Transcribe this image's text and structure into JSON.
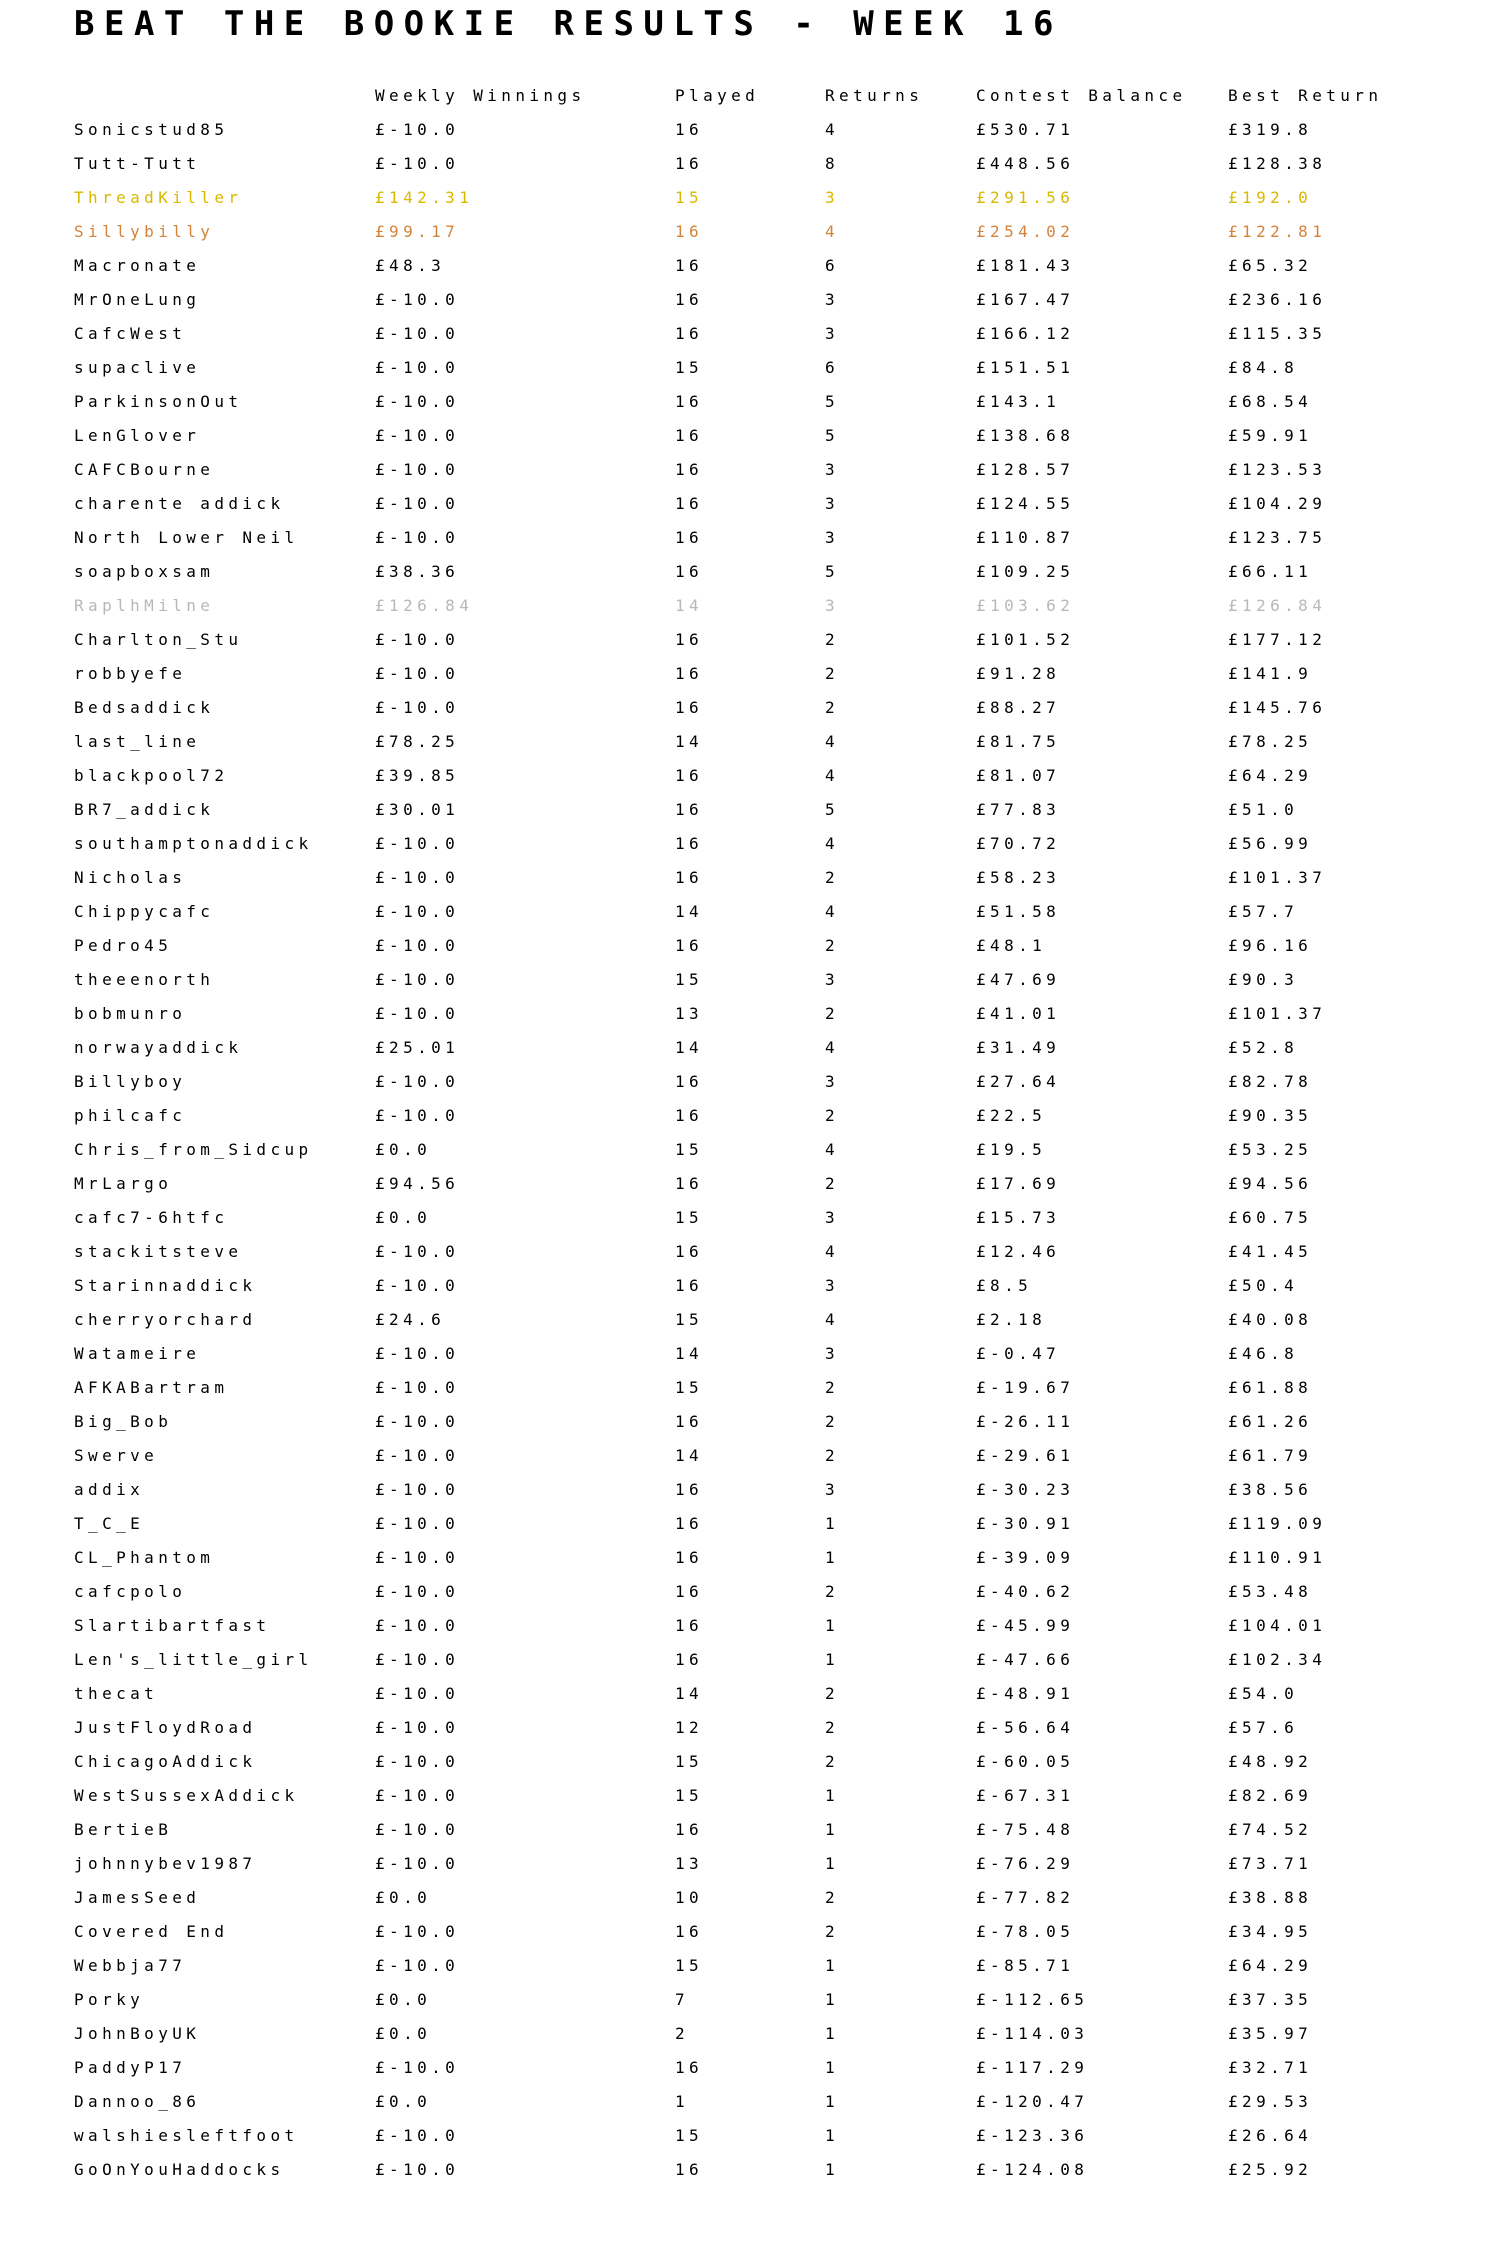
{
  "title": "BEAT THE BOOKIE RESULTS - WEEK 16",
  "colors": {
    "default": "#000000",
    "gold": "#d9b800",
    "orange": "#d4843a",
    "greyed": "#b8b8b8"
  },
  "columns": [
    "",
    "Weekly Winnings",
    "Played",
    "Returns",
    "Contest Balance",
    "Best Return"
  ],
  "rows": [
    {
      "name": "Sonicstud85",
      "weekly": "£-10.0",
      "played": "16",
      "returns": "4",
      "balance": "£530.71",
      "best": "£319.8"
    },
    {
      "name": "Tutt-Tutt",
      "weekly": "£-10.0",
      "played": "16",
      "returns": "8",
      "balance": "£448.56",
      "best": "£128.38"
    },
    {
      "name": "ThreadKiller",
      "weekly": "£142.31",
      "played": "15",
      "returns": "3",
      "balance": "£291.56",
      "best": "£192.0",
      "color": "gold"
    },
    {
      "name": "Sillybilly",
      "weekly": "£99.17",
      "played": "16",
      "returns": "4",
      "balance": "£254.02",
      "best": "£122.81",
      "color": "orange"
    },
    {
      "name": "Macronate",
      "weekly": "£48.3",
      "played": "16",
      "returns": "6",
      "balance": "£181.43",
      "best": "£65.32"
    },
    {
      "name": "MrOneLung",
      "weekly": "£-10.0",
      "played": "16",
      "returns": "3",
      "balance": "£167.47",
      "best": "£236.16"
    },
    {
      "name": "CafcWest",
      "weekly": "£-10.0",
      "played": "16",
      "returns": "3",
      "balance": "£166.12",
      "best": "£115.35"
    },
    {
      "name": "supaclive",
      "weekly": "£-10.0",
      "played": "15",
      "returns": "6",
      "balance": "£151.51",
      "best": "£84.8"
    },
    {
      "name": "ParkinsonOut",
      "weekly": "£-10.0",
      "played": "16",
      "returns": "5",
      "balance": "£143.1",
      "best": "£68.54"
    },
    {
      "name": "LenGlover",
      "weekly": "£-10.0",
      "played": "16",
      "returns": "5",
      "balance": "£138.68",
      "best": "£59.91"
    },
    {
      "name": "CAFCBourne",
      "weekly": "£-10.0",
      "played": "16",
      "returns": "3",
      "balance": "£128.57",
      "best": "£123.53"
    },
    {
      "name": "charente addick",
      "weekly": "£-10.0",
      "played": "16",
      "returns": "3",
      "balance": "£124.55",
      "best": "£104.29"
    },
    {
      "name": "North Lower Neil",
      "weekly": "£-10.0",
      "played": "16",
      "returns": "3",
      "balance": "£110.87",
      "best": "£123.75"
    },
    {
      "name": "soapboxsam",
      "weekly": "£38.36",
      "played": "16",
      "returns": "5",
      "balance": "£109.25",
      "best": "£66.11"
    },
    {
      "name": "RaplhMilne",
      "weekly": "£126.84",
      "played": "14",
      "returns": "3",
      "balance": "£103.62",
      "best": "£126.84",
      "color": "greyed"
    },
    {
      "name": "Charlton_Stu",
      "weekly": "£-10.0",
      "played": "16",
      "returns": "2",
      "balance": "£101.52",
      "best": "£177.12"
    },
    {
      "name": "robbyefe",
      "weekly": "£-10.0",
      "played": "16",
      "returns": "2",
      "balance": "£91.28",
      "best": "£141.9"
    },
    {
      "name": "Bedsaddick",
      "weekly": "£-10.0",
      "played": "16",
      "returns": "2",
      "balance": "£88.27",
      "best": "£145.76"
    },
    {
      "name": "last_line",
      "weekly": "£78.25",
      "played": "14",
      "returns": "4",
      "balance": "£81.75",
      "best": "£78.25"
    },
    {
      "name": "blackpool72",
      "weekly": "£39.85",
      "played": "16",
      "returns": "4",
      "balance": "£81.07",
      "best": "£64.29"
    },
    {
      "name": "BR7_addick",
      "weekly": "£30.01",
      "played": "16",
      "returns": "5",
      "balance": "£77.83",
      "best": "£51.0"
    },
    {
      "name": "southamptonaddick",
      "weekly": "£-10.0",
      "played": "16",
      "returns": "4",
      "balance": "£70.72",
      "best": "£56.99"
    },
    {
      "name": "Nicholas",
      "weekly": "£-10.0",
      "played": "16",
      "returns": "2",
      "balance": "£58.23",
      "best": "£101.37"
    },
    {
      "name": "Chippycafc",
      "weekly": "£-10.0",
      "played": "14",
      "returns": "4",
      "balance": "£51.58",
      "best": "£57.7"
    },
    {
      "name": "Pedro45",
      "weekly": "£-10.0",
      "played": "16",
      "returns": "2",
      "balance": "£48.1",
      "best": "£96.16"
    },
    {
      "name": "theeenorth",
      "weekly": "£-10.0",
      "played": "15",
      "returns": "3",
      "balance": "£47.69",
      "best": "£90.3"
    },
    {
      "name": "bobmunro",
      "weekly": "£-10.0",
      "played": "13",
      "returns": "2",
      "balance": "£41.01",
      "best": "£101.37"
    },
    {
      "name": "norwayaddick",
      "weekly": "£25.01",
      "played": "14",
      "returns": "4",
      "balance": "£31.49",
      "best": "£52.8"
    },
    {
      "name": "Billyboy",
      "weekly": "£-10.0",
      "played": "16",
      "returns": "3",
      "balance": "£27.64",
      "best": "£82.78"
    },
    {
      "name": "philcafc",
      "weekly": "£-10.0",
      "played": "16",
      "returns": "2",
      "balance": "£22.5",
      "best": "£90.35"
    },
    {
      "name": "Chris_from_Sidcup",
      "weekly": "£0.0",
      "played": "15",
      "returns": "4",
      "balance": "£19.5",
      "best": "£53.25"
    },
    {
      "name": "MrLargo",
      "weekly": "£94.56",
      "played": "16",
      "returns": "2",
      "balance": "£17.69",
      "best": "£94.56"
    },
    {
      "name": "cafc7-6htfc",
      "weekly": "£0.0",
      "played": "15",
      "returns": "3",
      "balance": "£15.73",
      "best": "£60.75"
    },
    {
      "name": "stackitsteve",
      "weekly": "£-10.0",
      "played": "16",
      "returns": "4",
      "balance": "£12.46",
      "best": "£41.45"
    },
    {
      "name": "Starinnaddick",
      "weekly": "£-10.0",
      "played": "16",
      "returns": "3",
      "balance": "£8.5",
      "best": "£50.4"
    },
    {
      "name": "cherryorchard",
      "weekly": "£24.6",
      "played": "15",
      "returns": "4",
      "balance": "£2.18",
      "best": "£40.08"
    },
    {
      "name": "Watameire",
      "weekly": "£-10.0",
      "played": "14",
      "returns": "3",
      "balance": "£-0.47",
      "best": "£46.8"
    },
    {
      "name": "AFKABartram",
      "weekly": "£-10.0",
      "played": "15",
      "returns": "2",
      "balance": "£-19.67",
      "best": "£61.88"
    },
    {
      "name": "Big_Bob",
      "weekly": "£-10.0",
      "played": "16",
      "returns": "2",
      "balance": "£-26.11",
      "best": "£61.26"
    },
    {
      "name": "Swerve",
      "weekly": "£-10.0",
      "played": "14",
      "returns": "2",
      "balance": "£-29.61",
      "best": "£61.79"
    },
    {
      "name": "addix",
      "weekly": "£-10.0",
      "played": "16",
      "returns": "3",
      "balance": "£-30.23",
      "best": "£38.56"
    },
    {
      "name": "T_C_E",
      "weekly": "£-10.0",
      "played": "16",
      "returns": "1",
      "balance": "£-30.91",
      "best": "£119.09"
    },
    {
      "name": "CL_Phantom",
      "weekly": "£-10.0",
      "played": "16",
      "returns": "1",
      "balance": "£-39.09",
      "best": "£110.91"
    },
    {
      "name": "cafcpolo",
      "weekly": "£-10.0",
      "played": "16",
      "returns": "2",
      "balance": "£-40.62",
      "best": "£53.48"
    },
    {
      "name": "Slartibartfast",
      "weekly": "£-10.0",
      "played": "16",
      "returns": "1",
      "balance": "£-45.99",
      "best": "£104.01"
    },
    {
      "name": "Len's_little_girl",
      "weekly": "£-10.0",
      "played": "16",
      "returns": "1",
      "balance": "£-47.66",
      "best": "£102.34"
    },
    {
      "name": "thecat",
      "weekly": "£-10.0",
      "played": "14",
      "returns": "2",
      "balance": "£-48.91",
      "best": "£54.0"
    },
    {
      "name": "JustFloydRoad",
      "weekly": "£-10.0",
      "played": "12",
      "returns": "2",
      "balance": "£-56.64",
      "best": "£57.6"
    },
    {
      "name": "ChicagoAddick",
      "weekly": "£-10.0",
      "played": "15",
      "returns": "2",
      "balance": "£-60.05",
      "best": "£48.92"
    },
    {
      "name": "WestSussexAddick",
      "weekly": "£-10.0",
      "played": "15",
      "returns": "1",
      "balance": "£-67.31",
      "best": "£82.69"
    },
    {
      "name": "BertieB",
      "weekly": "£-10.0",
      "played": "16",
      "returns": "1",
      "balance": "£-75.48",
      "best": "£74.52"
    },
    {
      "name": "johnnybev1987",
      "weekly": "£-10.0",
      "played": "13",
      "returns": "1",
      "balance": "£-76.29",
      "best": "£73.71"
    },
    {
      "name": "JamesSeed",
      "weekly": "£0.0",
      "played": "10",
      "returns": "2",
      "balance": "£-77.82",
      "best": "£38.88"
    },
    {
      "name": "Covered End",
      "weekly": "£-10.0",
      "played": "16",
      "returns": "2",
      "balance": "£-78.05",
      "best": "£34.95"
    },
    {
      "name": "Webbja77",
      "weekly": "£-10.0",
      "played": "15",
      "returns": "1",
      "balance": "£-85.71",
      "best": "£64.29"
    },
    {
      "name": "Porky",
      "weekly": "£0.0",
      "played": "7",
      "returns": "1",
      "balance": "£-112.65",
      "best": "£37.35"
    },
    {
      "name": "JohnBoyUK",
      "weekly": "£0.0",
      "played": "2",
      "returns": "1",
      "balance": "£-114.03",
      "best": "£35.97"
    },
    {
      "name": "PaddyP17",
      "weekly": "£-10.0",
      "played": "16",
      "returns": "1",
      "balance": "£-117.29",
      "best": "£32.71"
    },
    {
      "name": "Dannoo_86",
      "weekly": "£0.0",
      "played": "1",
      "returns": "1",
      "balance": "£-120.47",
      "best": "£29.53"
    },
    {
      "name": "walshiesleftfoot",
      "weekly": "£-10.0",
      "played": "15",
      "returns": "1",
      "balance": "£-123.36",
      "best": "£26.64"
    },
    {
      "name": "GoOnYouHaddocks",
      "weekly": "£-10.0",
      "played": "16",
      "returns": "1",
      "balance": "£-124.08",
      "best": "£25.92"
    }
  ]
}
